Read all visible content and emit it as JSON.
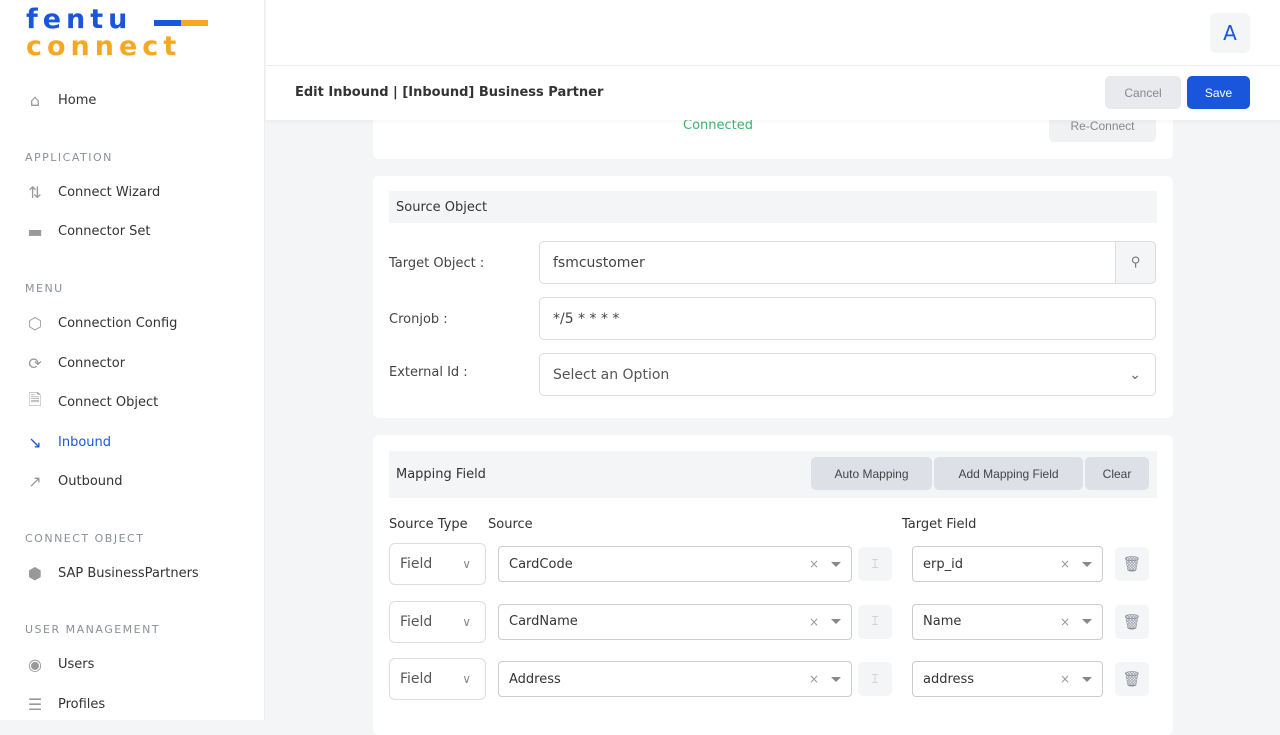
{
  "logo": {
    "line1": "fentu",
    "line2": "connect"
  },
  "sidebar": {
    "home": "Home",
    "sections": [
      "APPLICATION",
      "MENU",
      "CONNECT OBJECT",
      "USER MANAGEMENT"
    ],
    "application": [
      "Connect Wizard",
      "Connector Set"
    ],
    "menu": [
      "Connection Config",
      "Connector",
      "Connect Object",
      "Inbound",
      "Outbound"
    ],
    "connect_object": [
      "SAP BusinessPartners"
    ],
    "user_management": [
      "Users",
      "Profiles"
    ],
    "active": "Inbound"
  },
  "header": {
    "avatar": "A",
    "page_title": "Edit Inbound | [Inbound] Business Partner",
    "cancel": "Cancel",
    "save": "Save"
  },
  "connection": {
    "status": "Connected",
    "reconnect": "Re-Connect"
  },
  "source_object": {
    "title": "Source Object",
    "target_label": "Target Object :",
    "target_value": "fsmcustomer",
    "cron_label": "Cronjob :",
    "cron_value": "*/5 * * * *",
    "external_label": "External Id :",
    "external_placeholder": "Select an Option"
  },
  "mapping": {
    "title": "Mapping Field",
    "auto": "Auto Mapping",
    "add": "Add Mapping Field",
    "clear": "Clear",
    "col_source_type": "Source Type",
    "col_source": "Source",
    "col_target": "Target Field",
    "rows": [
      {
        "type": "Field",
        "source": "CardCode",
        "target": "erp_id"
      },
      {
        "type": "Field",
        "source": "CardName",
        "target": "Name"
      },
      {
        "type": "Field",
        "source": "Address",
        "target": "address"
      }
    ]
  },
  "colors": {
    "primary": "#1a56db",
    "accent": "#f6a821",
    "connected": "#3cb371"
  }
}
